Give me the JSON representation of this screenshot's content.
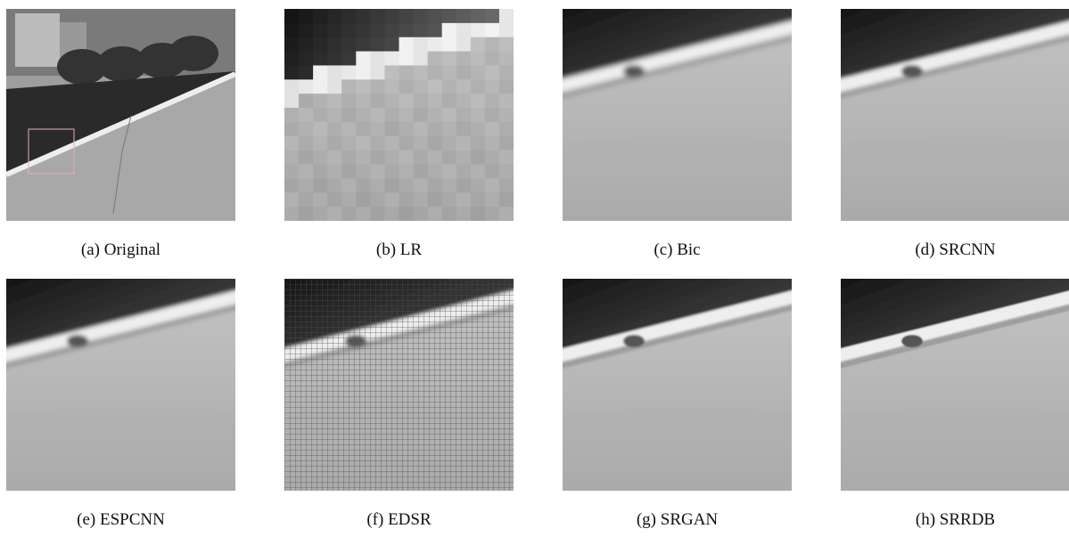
{
  "panels": [
    {
      "caption": "(a) Original"
    },
    {
      "caption": "(b) LR"
    },
    {
      "caption": "(c) Bic"
    },
    {
      "caption": "(d) SRCNN"
    },
    {
      "caption": "(e) ESPCNN"
    },
    {
      "caption": "(f) EDSR"
    },
    {
      "caption": "(g) SRGAN"
    },
    {
      "caption": "(h) SRRDB"
    }
  ]
}
